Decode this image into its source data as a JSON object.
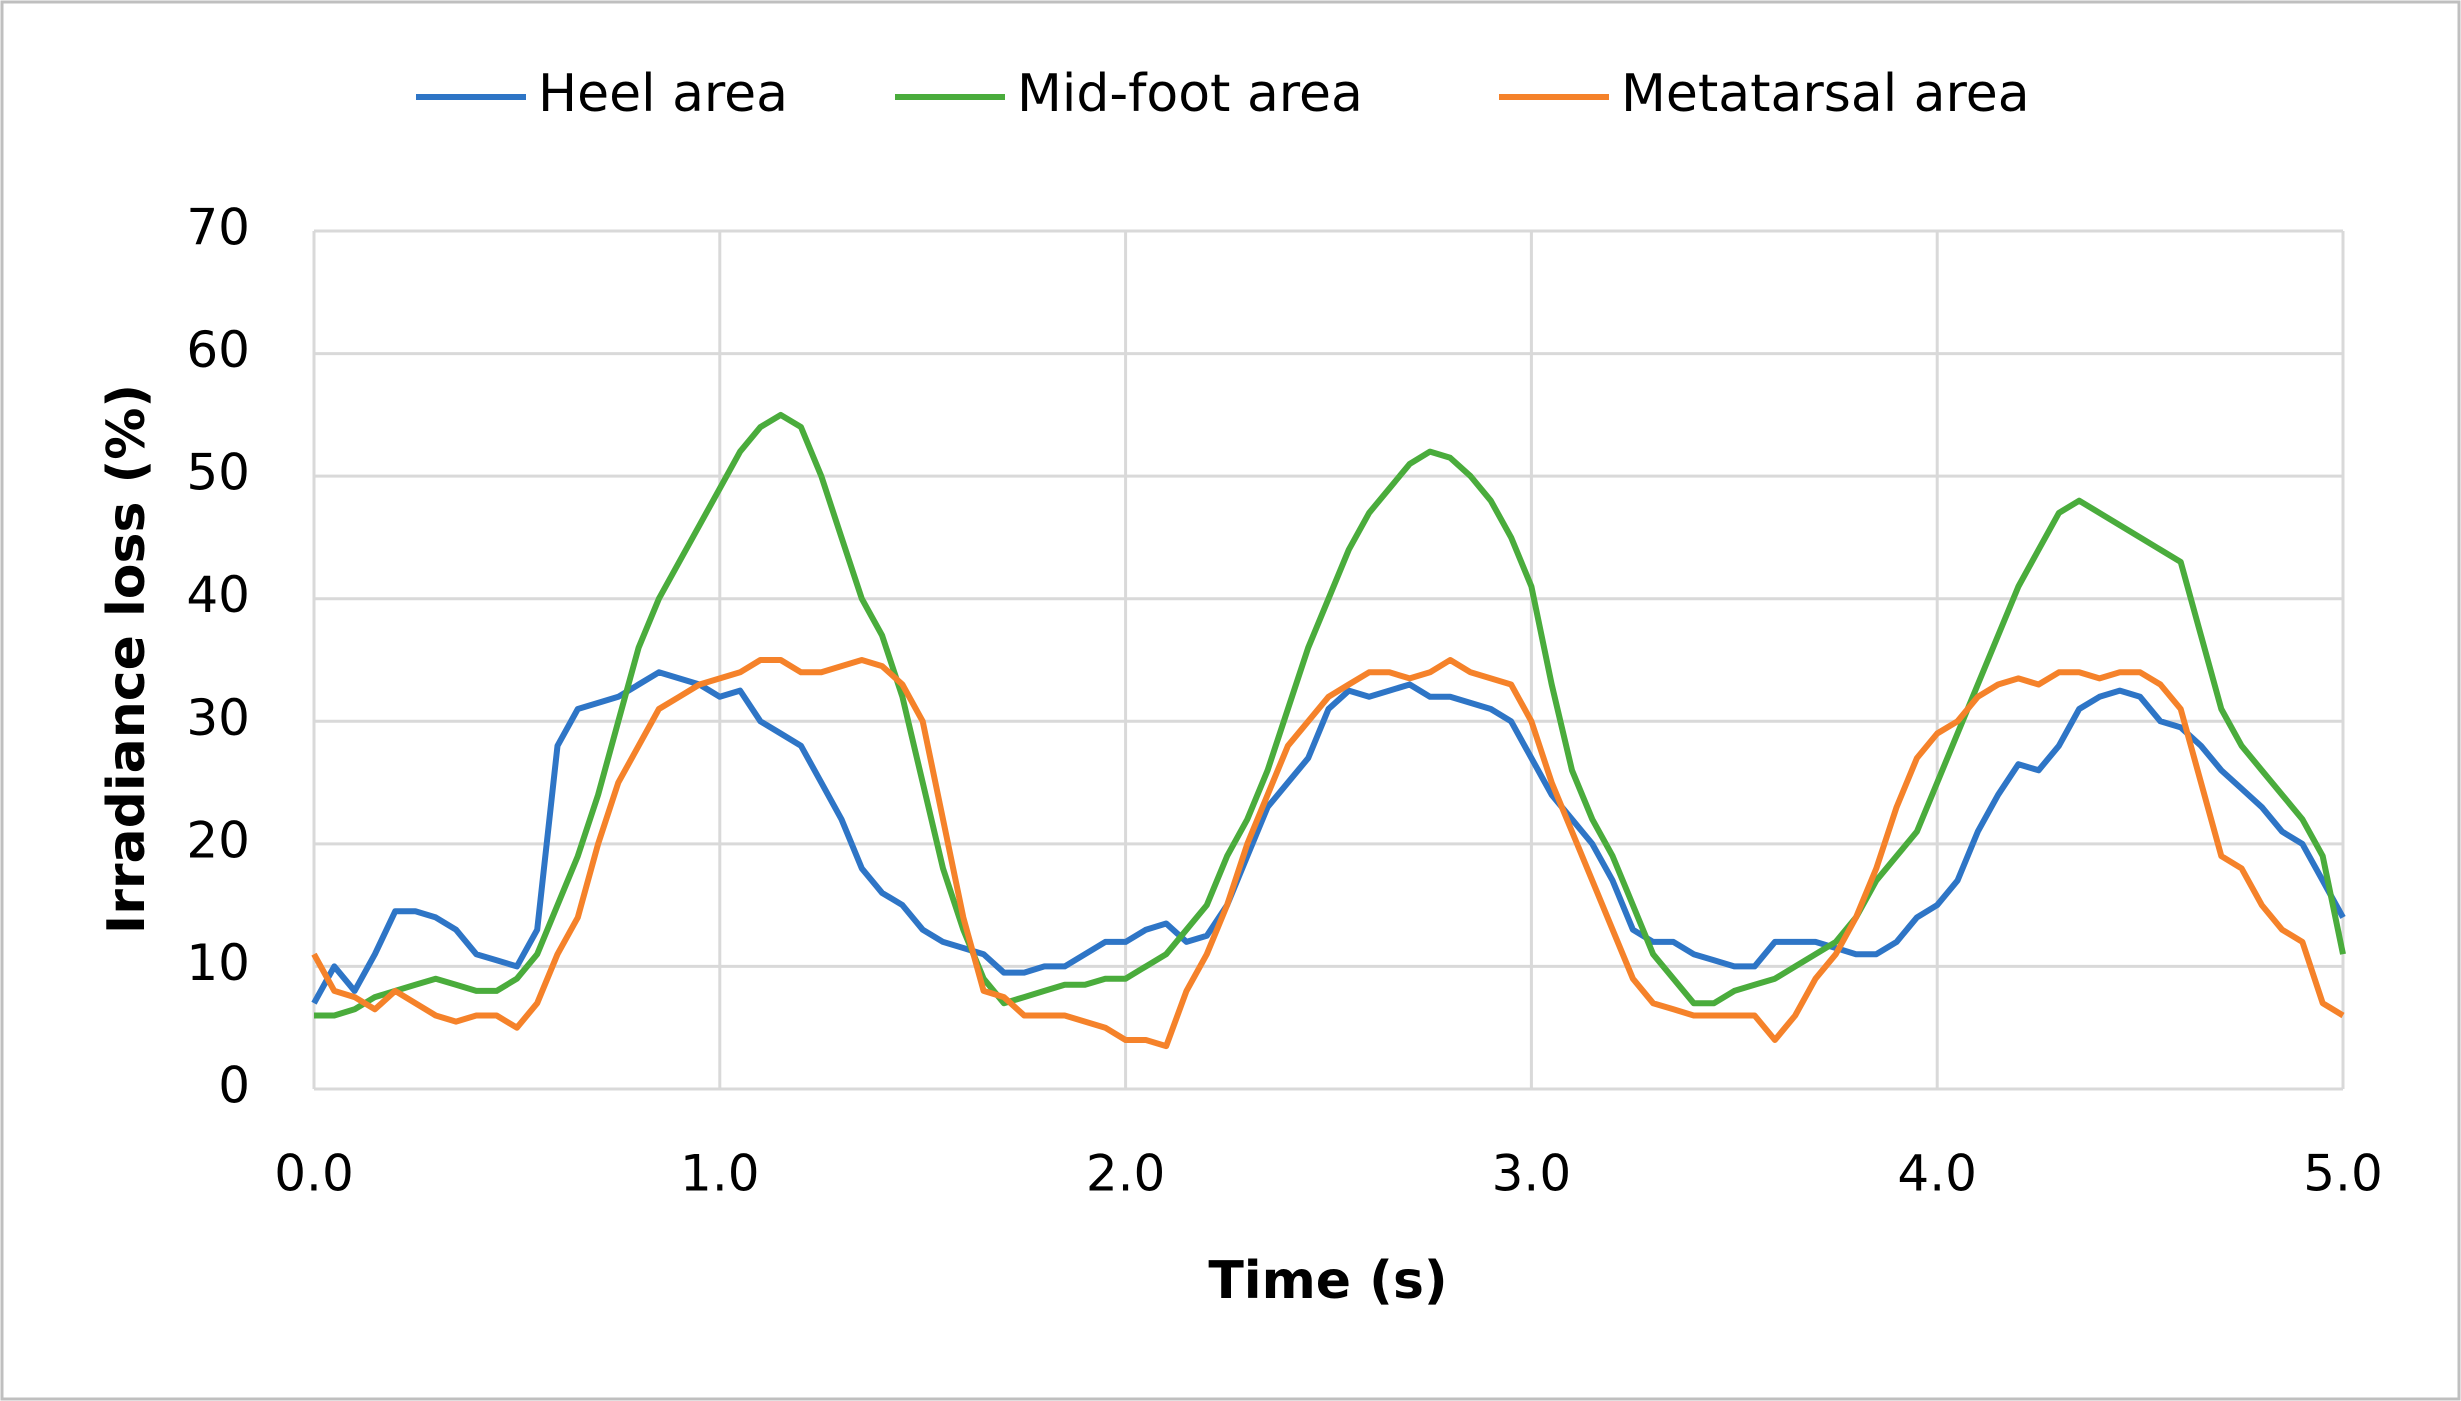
{
  "chart_data": {
    "type": "line",
    "xlabel": "Time (s)",
    "ylabel": "Irradiance loss (%)",
    "x": [
      0,
      0.05,
      0.1,
      0.15,
      0.2,
      0.25,
      0.3,
      0.35,
      0.4,
      0.45,
      0.5,
      0.55,
      0.6,
      0.65,
      0.7,
      0.75,
      0.8,
      0.85,
      0.9,
      0.95,
      1,
      1.05,
      1.1,
      1.15,
      1.2,
      1.25,
      1.3,
      1.35,
      1.4,
      1.45,
      1.5,
      1.55,
      1.6,
      1.65,
      1.7,
      1.75,
      1.8,
      1.85,
      1.9,
      1.95,
      2,
      2.05,
      2.1,
      2.15,
      2.2,
      2.25,
      2.3,
      2.35,
      2.4,
      2.45,
      2.5,
      2.55,
      2.6,
      2.65,
      2.7,
      2.75,
      2.8,
      2.85,
      2.9,
      2.95,
      3,
      3.05,
      3.1,
      3.15,
      3.2,
      3.25,
      3.3,
      3.35,
      3.4,
      3.45,
      3.5,
      3.55,
      3.6,
      3.65,
      3.7,
      3.75,
      3.8,
      3.85,
      3.9,
      3.95,
      4,
      4.05,
      4.1,
      4.15,
      4.2,
      4.25,
      4.3,
      4.35,
      4.4,
      4.45,
      4.5,
      4.55,
      4.6,
      4.65,
      4.7,
      4.75,
      4.8,
      4.85,
      4.9,
      4.95,
      5
    ],
    "series": [
      {
        "name": "Heel area",
        "color": "#2e75c6",
        "values": [
          7,
          10,
          8,
          11,
          14.5,
          14.5,
          14,
          13,
          11,
          10.5,
          10,
          13,
          28,
          31,
          31.5,
          32,
          33,
          34,
          33.5,
          33,
          32,
          32.5,
          30,
          29,
          28,
          25,
          22,
          18,
          16,
          15,
          13,
          12,
          11.5,
          11,
          9.5,
          9.5,
          10,
          10,
          11,
          12,
          12,
          13,
          13.5,
          12,
          12.5,
          15,
          19,
          23,
          25,
          27,
          31,
          32.5,
          32,
          32.5,
          33,
          32,
          32,
          31.5,
          31,
          30,
          27,
          24,
          22,
          20,
          17,
          13,
          12,
          12,
          11,
          10.5,
          10,
          10,
          12,
          12,
          12,
          11.5,
          11,
          11,
          12,
          14,
          15,
          17,
          21,
          24,
          26.5,
          26,
          28,
          31,
          32,
          32.5,
          32,
          30,
          29.5,
          28,
          26,
          24.5,
          23,
          21,
          20,
          17,
          14
        ]
      },
      {
        "name": "Mid-foot area",
        "color": "#4aac3c",
        "values": [
          6,
          6,
          6.5,
          7.5,
          8,
          8.5,
          9,
          8.5,
          8,
          8,
          9,
          11,
          15,
          19,
          24,
          30,
          36,
          40,
          43,
          46,
          49,
          52,
          54,
          55,
          54,
          50,
          45,
          40,
          37,
          32,
          25,
          18,
          13,
          9,
          7,
          7.5,
          8,
          8.5,
          8.5,
          9,
          9,
          10,
          11,
          13,
          15,
          19,
          22,
          26,
          31,
          36,
          40,
          44,
          47,
          49,
          51,
          52,
          51.5,
          50,
          48,
          45,
          41,
          33,
          26,
          22,
          19,
          15,
          11,
          9,
          7,
          7,
          8,
          8.5,
          9,
          10,
          11,
          12,
          14,
          17,
          19,
          21,
          25,
          29,
          33,
          37,
          41,
          44,
          47,
          48,
          47,
          46,
          45,
          44,
          43,
          37,
          31,
          28,
          26,
          24,
          22,
          19,
          11
        ]
      },
      {
        "name": "Metatarsal area",
        "color": "#f5822a",
        "values": [
          11,
          8,
          7.5,
          6.5,
          8,
          7,
          6,
          5.5,
          6,
          6,
          5,
          7,
          11,
          14,
          20,
          25,
          28,
          31,
          32,
          33,
          33.5,
          34,
          35,
          35,
          34,
          34,
          34.5,
          35,
          34.5,
          33,
          30,
          22,
          14,
          8,
          7.5,
          6,
          6,
          6,
          5.5,
          5,
          4,
          4,
          3.5,
          8,
          11,
          15,
          20,
          24,
          28,
          30,
          32,
          33,
          34,
          34,
          33.5,
          34,
          35,
          34,
          33.5,
          33,
          30,
          25,
          21,
          17,
          13,
          9,
          7,
          6.5,
          6,
          6,
          6,
          6,
          4,
          6,
          9,
          11,
          14,
          18,
          23,
          27,
          29,
          30,
          32,
          33,
          33.5,
          33,
          34,
          34,
          33.5,
          34,
          34,
          33,
          31,
          25,
          19,
          18,
          15,
          13,
          12,
          7,
          6
        ]
      }
    ],
    "xlim": [
      0,
      5
    ],
    "xticks": [
      {
        "value": 0,
        "label": "0.0"
      },
      {
        "value": 1,
        "label": "1.0"
      },
      {
        "value": 2,
        "label": "2.0"
      },
      {
        "value": 3,
        "label": "3.0"
      },
      {
        "value": 4,
        "label": "4.0"
      },
      {
        "value": 5,
        "label": "5.0"
      }
    ],
    "ylim": [
      0,
      70
    ],
    "yticks": [
      0,
      10,
      20,
      30,
      40,
      50,
      60,
      70
    ],
    "grid": true,
    "legend": "top"
  }
}
